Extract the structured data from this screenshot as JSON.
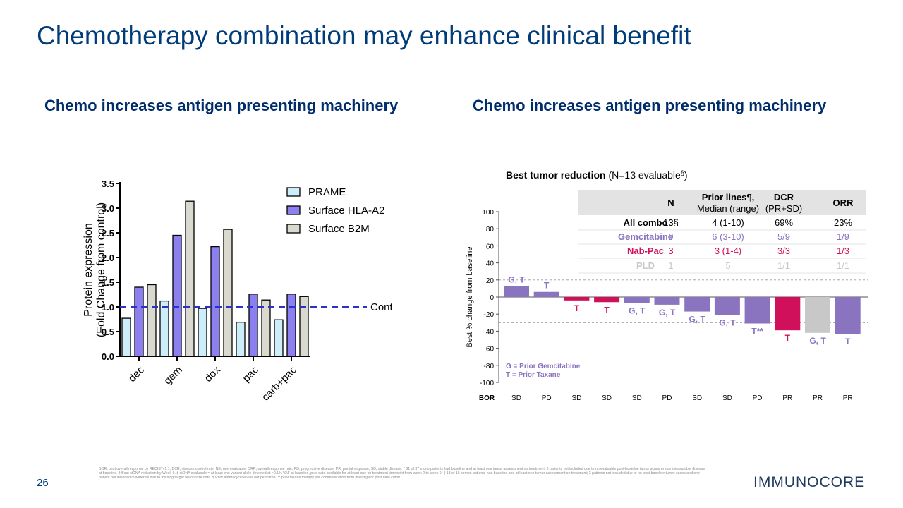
{
  "title": "Chemotherapy combination may enhance clinical benefit",
  "subtitle_left": "Chemo increases antigen presenting machinery",
  "subtitle_right": "Chemo increases antigen presenting machinery",
  "colors": {
    "title": "#003b7a",
    "prame": "#cdeef8",
    "hla": "#8c7ff0",
    "b2m": "#d9d9cf",
    "control_line": "#2a32c8",
    "gem": "#8a74c0",
    "nab": "#d0105a",
    "pld": "#c8c8c8",
    "table_header_bg": "#e3e3e3"
  },
  "chart_data": [
    {
      "type": "bar",
      "categories": [
        "dec",
        "gem",
        "dox",
        "pac",
        "carb+pac"
      ],
      "series": [
        {
          "name": "PRAME",
          "values": [
            0.77,
            1.12,
            0.97,
            0.69,
            0.74
          ]
        },
        {
          "name": "Surface HLA-A2",
          "values": [
            1.4,
            2.45,
            2.22,
            1.26,
            1.26
          ]
        },
        {
          "name": "Surface B2M",
          "values": [
            1.45,
            3.14,
            2.57,
            1.14,
            1.21
          ]
        }
      ],
      "ylabel": "Protein expression (Fold Change from control)",
      "ylabel_lines": [
        "Protein expression",
        "(Fold  Change from control)"
      ],
      "ylim": [
        0,
        3.5
      ],
      "yticks": [
        "0.0",
        "0.5",
        "1.0",
        "1.5",
        "2.0",
        "2.5",
        "3.0",
        "3.5"
      ],
      "reference_line": {
        "value": 1.0,
        "label": "Control"
      },
      "legend_position": "top-right"
    },
    {
      "type": "bar",
      "title_bold": "Best tumor reduction",
      "title_rest": " (N=13 evaluable",
      "title_sup": "§",
      "title_close": ")",
      "ylabel": "Best % change from baseline",
      "ylim": [
        -100,
        100
      ],
      "yticks": [
        "100",
        "80",
        "60",
        "40",
        "20",
        "0",
        "-20",
        "-40",
        "-60",
        "-80",
        "-100"
      ],
      "reference_lines": [
        20,
        -30
      ],
      "bor_label": "BOR",
      "bars": [
        {
          "value": 13,
          "group": "gem",
          "label": "G, T",
          "bor": "SD"
        },
        {
          "value": 6,
          "group": "gem",
          "label": "T",
          "bor": "PD"
        },
        {
          "value": -4,
          "group": "nab",
          "label": "T",
          "bor": "SD"
        },
        {
          "value": -6,
          "group": "nab",
          "label": "T",
          "bor": "SD"
        },
        {
          "value": -7,
          "group": "gem",
          "label": "G, T",
          "bor": "SD"
        },
        {
          "value": -9,
          "group": "gem",
          "label": "G, T",
          "bor": "PD"
        },
        {
          "value": -17,
          "group": "gem",
          "label": "G, T",
          "bor": "SD"
        },
        {
          "value": -21,
          "group": "gem",
          "label": "G, T",
          "bor": "SD"
        },
        {
          "value": -31,
          "group": "gem",
          "label": "T**",
          "bor": "PD"
        },
        {
          "value": -39,
          "group": "nab",
          "label": "T",
          "bor": "PR"
        },
        {
          "value": -42,
          "group": "pld",
          "label": "G, T",
          "bor": "PR"
        },
        {
          "value": -43,
          "group": "gem",
          "label": "T",
          "bor": "PR"
        }
      ],
      "legend_lines": [
        "G = Prior Gemcitabine",
        "T = Prior Taxane"
      ],
      "table": {
        "headers": [
          {
            "text": "",
            "lines": [
              ""
            ]
          },
          {
            "text": "N",
            "lines": [
              "N"
            ]
          },
          {
            "text": "Prior lines¶, Median (range)",
            "lines": [
              "Prior lines¶,",
              "Median (range)"
            ]
          },
          {
            "text": "DCR (PR+SD)",
            "lines": [
              "DCR",
              "(PR+SD)"
            ]
          },
          {
            "text": "ORR",
            "lines": [
              "ORR"
            ]
          }
        ],
        "rows": [
          {
            "group": "all",
            "cells": [
              "All combo",
              "13§",
              "4 (1-10)",
              "69%",
              "23%"
            ]
          },
          {
            "group": "gem",
            "cells": [
              "Gemcitabine",
              "9",
              "6 (3-10)",
              "5/9",
              "1/9"
            ]
          },
          {
            "group": "nab",
            "cells": [
              "Nab-Pac",
              "3",
              "3 (1-4)",
              "3/3",
              "1/3"
            ]
          },
          {
            "group": "pld",
            "cells": [
              "PLD",
              "1",
              "5",
              "1/1",
              "1/1"
            ]
          }
        ]
      }
    }
  ],
  "footnote": "BOR, best overall response by RECISTv1.1; DCR, disease control rate; NE, non evaluable; ORR, overall response rate; PD, progressive disease; PR, partial response; SD, stable disease. * 31 of 37 mono patients had baseline and at least one tumor assessment on treatment; 6 patients not included due to no evaluable post-baseline tumor scans or non measurable disease at baseline. † Best ctDNA reduction by Week 9. ‡ ctDNA evaluable = at least one variant allele detected at >0.1% VAF at baseline, plus data available for at least one on-treatment timepoint from week 2 to week 9. § 13 of 16 combo patients had baseline and at least one tumor assessment on treatment; 3 patients not included due to no post-baseline tumor scans and one patient not included in waterfall due to missing target lesion size data. ¶ Prior anthracycline was not permitted. ** prior taxane therapy per communication from investigator post data cutoff.",
  "page_number": "26",
  "logo_text": "IMMUNOCORE"
}
